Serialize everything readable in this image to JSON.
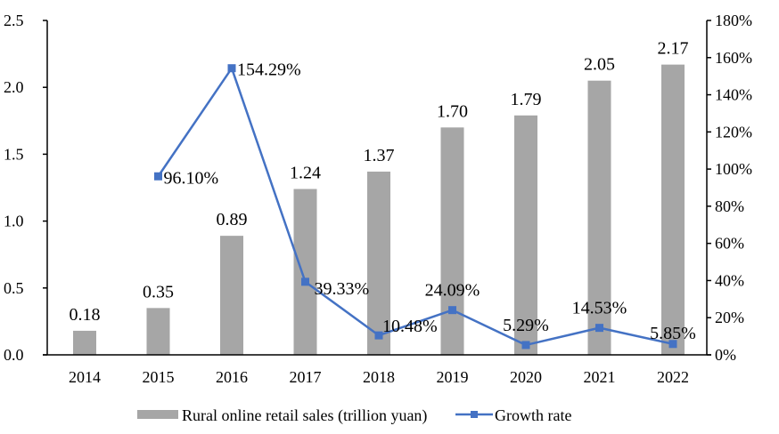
{
  "chart_data": {
    "type": "bar",
    "title": "",
    "categories": [
      "2014",
      "2015",
      "2016",
      "2017",
      "2018",
      "2019",
      "2020",
      "2021",
      "2022"
    ],
    "series": [
      {
        "name": "Rural online retail sales (trillion yuan)",
        "type": "bar",
        "axis": "left",
        "color": "#a6a6a6",
        "values": [
          0.18,
          0.35,
          0.89,
          1.24,
          1.37,
          1.7,
          1.79,
          2.05,
          2.17
        ],
        "labels": [
          "0.18",
          "0.35",
          "0.89",
          "1.24",
          "1.37",
          "1.70",
          "1.79",
          "2.05",
          "2.17"
        ]
      },
      {
        "name": "Growth rate",
        "type": "line",
        "axis": "right",
        "color": "#4472c4",
        "marker": "square",
        "values": [
          null,
          96.1,
          154.29,
          39.33,
          10.48,
          24.09,
          5.29,
          14.53,
          5.85
        ],
        "labels": [
          null,
          "96.10%",
          "154.29%",
          "39.33%",
          "10.48%",
          "24.09%",
          "5.29%",
          "14.53%",
          "5.85%"
        ]
      }
    ],
    "left_axis": {
      "ylim": [
        0,
        2.5
      ],
      "ticks": [
        0,
        0.5,
        1.0,
        1.5,
        2.0,
        2.5
      ],
      "tick_labels": [
        "0.0",
        "0.5",
        "1.0",
        "1.5",
        "2.0",
        "2.5"
      ]
    },
    "right_axis": {
      "ylim": [
        0,
        180
      ],
      "ticks": [
        0,
        20,
        40,
        60,
        80,
        100,
        120,
        140,
        160,
        180
      ],
      "tick_labels": [
        "0%",
        "20%",
        "40%",
        "60%",
        "80%",
        "100%",
        "120%",
        "140%",
        "160%",
        "180%"
      ]
    },
    "xlabel": "",
    "ylabel": "",
    "grid": false,
    "legend": {
      "position": "bottom",
      "entries": [
        "Rural online retail sales (trillion yuan)",
        "Growth rate"
      ]
    }
  }
}
